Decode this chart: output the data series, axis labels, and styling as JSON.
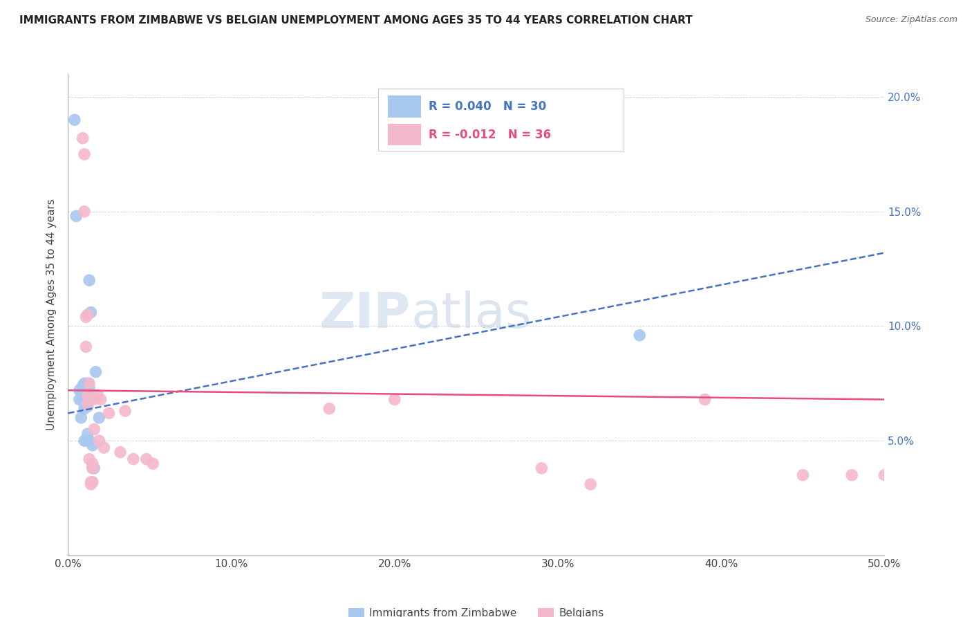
{
  "title": "IMMIGRANTS FROM ZIMBABWE VS BELGIAN UNEMPLOYMENT AMONG AGES 35 TO 44 YEARS CORRELATION CHART",
  "source": "Source: ZipAtlas.com",
  "ylabel": "Unemployment Among Ages 35 to 44 years",
  "xlim": [
    0.0,
    0.5
  ],
  "ylim": [
    0.0,
    0.21
  ],
  "xticks": [
    0.0,
    0.1,
    0.2,
    0.3,
    0.4,
    0.5
  ],
  "yticks": [
    0.05,
    0.1,
    0.15,
    0.2
  ],
  "ytick_labels_right": [
    "5.0%",
    "10.0%",
    "15.0%",
    "20.0%"
  ],
  "xtick_labels": [
    "0.0%",
    "10.0%",
    "20.0%",
    "30.0%",
    "40.0%",
    "50.0%"
  ],
  "legend_r1": "0.040",
  "legend_n1": "30",
  "legend_r2": "-0.012",
  "legend_n2": "36",
  "color_blue": "#a8c8f0",
  "color_pink": "#f4b8cc",
  "color_blue_line": "#4472c4",
  "color_pink_line": "#e84c7d",
  "color_right_axis": "#4472c4",
  "watermark_zip": "ZIP",
  "watermark_atlas": "atlas",
  "blue_scatter_x": [
    0.004,
    0.005,
    0.007,
    0.007,
    0.008,
    0.009,
    0.009,
    0.009,
    0.01,
    0.01,
    0.01,
    0.01,
    0.01,
    0.011,
    0.011,
    0.011,
    0.012,
    0.012,
    0.012,
    0.012,
    0.013,
    0.013,
    0.013,
    0.014,
    0.015,
    0.015,
    0.016,
    0.017,
    0.019,
    0.35
  ],
  "blue_scatter_y": [
    0.19,
    0.148,
    0.072,
    0.068,
    0.06,
    0.074,
    0.071,
    0.068,
    0.075,
    0.072,
    0.066,
    0.064,
    0.05,
    0.073,
    0.068,
    0.05,
    0.075,
    0.072,
    0.065,
    0.053,
    0.12,
    0.073,
    0.05,
    0.106,
    0.048,
    0.038,
    0.038,
    0.08,
    0.06,
    0.096
  ],
  "pink_scatter_x": [
    0.009,
    0.01,
    0.01,
    0.011,
    0.011,
    0.012,
    0.012,
    0.012,
    0.013,
    0.013,
    0.013,
    0.014,
    0.014,
    0.015,
    0.015,
    0.015,
    0.016,
    0.016,
    0.018,
    0.019,
    0.02,
    0.022,
    0.025,
    0.032,
    0.035,
    0.04,
    0.048,
    0.052,
    0.16,
    0.2,
    0.29,
    0.32,
    0.39,
    0.45,
    0.48,
    0.5
  ],
  "pink_scatter_y": [
    0.182,
    0.175,
    0.15,
    0.104,
    0.091,
    0.105,
    0.07,
    0.066,
    0.075,
    0.068,
    0.042,
    0.032,
    0.031,
    0.04,
    0.038,
    0.032,
    0.068,
    0.055,
    0.07,
    0.05,
    0.068,
    0.047,
    0.062,
    0.045,
    0.063,
    0.042,
    0.042,
    0.04,
    0.064,
    0.068,
    0.038,
    0.031,
    0.068,
    0.035,
    0.035,
    0.035
  ],
  "blue_trend_start_x": 0.0,
  "blue_trend_end_x": 0.5,
  "blue_trend_start_y": 0.062,
  "blue_trend_end_y": 0.132,
  "pink_trend_start_x": 0.0,
  "pink_trend_end_x": 0.5,
  "pink_trend_start_y": 0.072,
  "pink_trend_end_y": 0.068
}
